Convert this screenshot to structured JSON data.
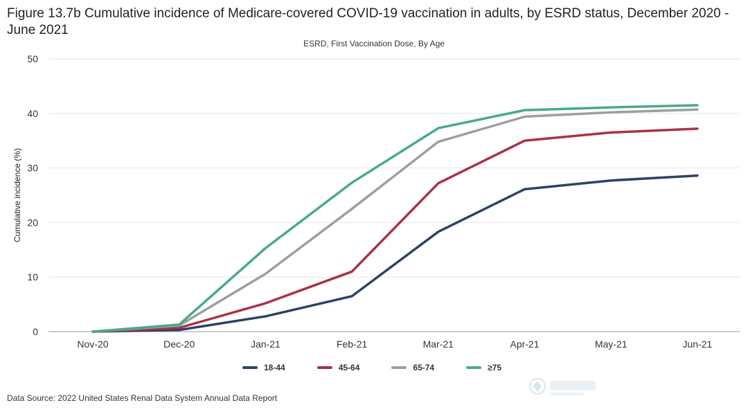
{
  "title": "Figure 13.7b Cumulative incidence of Medicare-covered COVID-19 vaccination in adults, by ESRD status, December 2020 - June 2021",
  "source": "Data Source: 2022 United States Renal Data System Annual Data Report",
  "chart_data": {
    "type": "line",
    "title": "Figure 13.7b Cumulative incidence of Medicare-covered COVID-19 vaccination in adults, by ESRD status, December 2020 - June 2021",
    "subtitle": "ESRD, First Vaccination Dose, By Age",
    "xlabel": "",
    "ylabel": "Cumulative incidence (%)",
    "categories": [
      "Nov-20",
      "Dec-20",
      "Jan-21",
      "Feb-21",
      "Mar-21",
      "Apr-21",
      "May-21",
      "Jun-21"
    ],
    "ylim": [
      0,
      50
    ],
    "yticks": [
      0,
      10,
      20,
      30,
      40,
      50
    ],
    "grid": true,
    "legend_position": "bottom",
    "series": [
      {
        "name": "18-44",
        "color": "#2e4266",
        "values": [
          0,
          0.3,
          2.8,
          6.5,
          18.3,
          26.1,
          27.7,
          28.6
        ]
      },
      {
        "name": "45-64",
        "color": "#a93148",
        "values": [
          0,
          0.7,
          5.2,
          11.0,
          27.2,
          35.0,
          36.5,
          37.2
        ]
      },
      {
        "name": "65-74",
        "color": "#9b9fa4",
        "values": [
          0,
          1.1,
          10.6,
          22.5,
          34.8,
          39.4,
          40.2,
          40.7
        ]
      },
      {
        "name": "≥75",
        "color": "#4aa98c",
        "values": [
          0,
          1.3,
          15.3,
          27.3,
          37.3,
          40.6,
          41.1,
          41.5
        ]
      }
    ]
  }
}
